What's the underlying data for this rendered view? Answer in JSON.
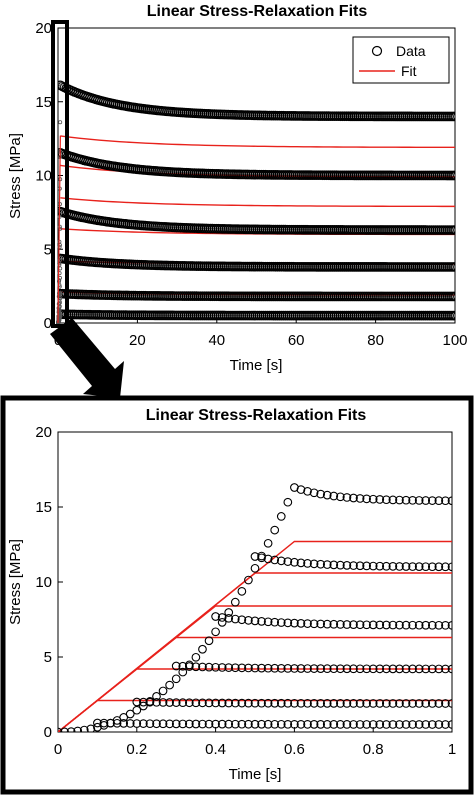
{
  "chart_data": [
    {
      "type": "scatter",
      "title": "Linear Stress-Relaxation Fits",
      "xlabel": "Time [s]",
      "ylabel": "Stress [MPa]",
      "xlim": [
        0,
        100
      ],
      "ylim": [
        0,
        20
      ],
      "xticks": [
        "0",
        "20",
        "40",
        "60",
        "80",
        "100"
      ],
      "yticks": [
        "0",
        "5",
        "10",
        "15",
        "20"
      ],
      "legend": {
        "position": "top-right",
        "entries": [
          "Data",
          "Fit"
        ]
      },
      "series": [
        {
          "name": "Data",
          "kind": "markers",
          "color": "#000000",
          "curves": [
            {
              "start": 16.2,
              "end": 14.0
            },
            {
              "start": 11.6,
              "end": 10.0
            },
            {
              "start": 7.6,
              "end": 6.3
            },
            {
              "start": 4.4,
              "end": 3.8
            },
            {
              "start": 2.0,
              "end": 1.8
            },
            {
              "start": 0.6,
              "end": 0.5
            }
          ]
        },
        {
          "name": "Fit",
          "kind": "line",
          "color": "#e8221c",
          "curves": [
            {
              "start": 12.7,
              "end": 11.9
            },
            {
              "start": 10.7,
              "end": 9.9
            },
            {
              "start": 8.5,
              "end": 7.9
            },
            {
              "start": 6.4,
              "end": 6.0
            },
            {
              "start": 4.2,
              "end": 4.0
            },
            {
              "start": 2.1,
              "end": 1.9
            }
          ]
        }
      ]
    },
    {
      "type": "scatter",
      "title": "Linear Stress-Relaxation Fits",
      "xlabel": "Time [s]",
      "ylabel": "Stress [MPa]",
      "xlim": [
        0,
        1
      ],
      "ylim": [
        0,
        20
      ],
      "xticks": [
        "0",
        "0.2",
        "0.4",
        "0.6",
        "0.8",
        "1"
      ],
      "yticks": [
        "0",
        "5",
        "10",
        "15",
        "20"
      ],
      "series": [
        {
          "name": "Data",
          "kind": "markers",
          "color": "#000000",
          "curves": [
            {
              "peak_time": 0.6,
              "peak": 16.3,
              "end": 15.4
            },
            {
              "peak_time": 0.5,
              "peak": 11.7,
              "end": 11.0
            },
            {
              "peak_time": 0.4,
              "peak": 7.7,
              "end": 7.1
            },
            {
              "peak_time": 0.3,
              "peak": 4.4,
              "end": 4.2
            },
            {
              "peak_time": 0.2,
              "peak": 2.0,
              "end": 1.9
            },
            {
              "peak_time": 0.1,
              "peak": 0.6,
              "end": 0.5
            }
          ]
        },
        {
          "name": "Fit",
          "kind": "line",
          "color": "#e8221c",
          "curves": [
            {
              "hold_time": 0.6,
              "level": 12.7
            },
            {
              "hold_time": 0.5,
              "level": 10.6
            },
            {
              "hold_time": 0.4,
              "level": 8.4
            },
            {
              "hold_time": 0.3,
              "level": 6.3
            },
            {
              "hold_time": 0.2,
              "level": 4.2
            },
            {
              "hold_time": 0.1,
              "level": 2.1
            }
          ]
        }
      ]
    }
  ]
}
